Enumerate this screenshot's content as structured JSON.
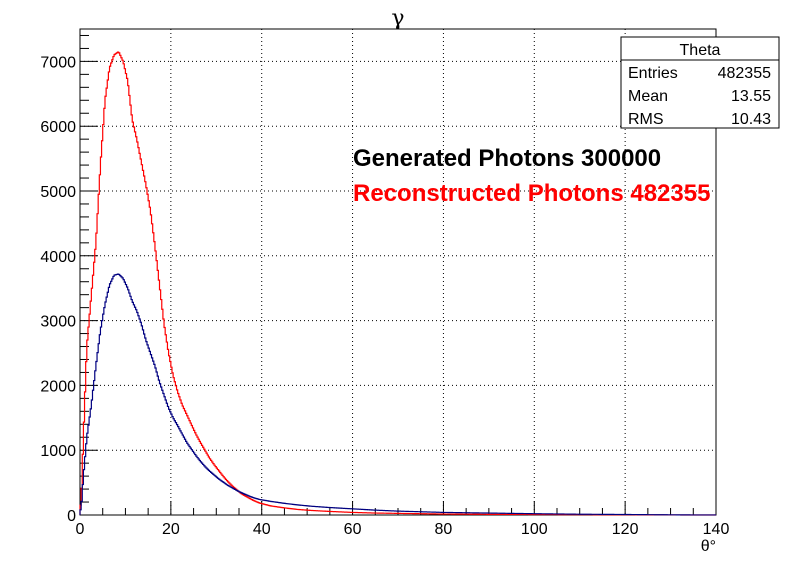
{
  "chart_data": {
    "type": "line",
    "title": "γ",
    "xlabel": "θ°",
    "ylabel": "",
    "xlim": [
      0,
      140
    ],
    "ylim": [
      0,
      7500
    ],
    "xticks": [
      0,
      20,
      40,
      60,
      80,
      100,
      120,
      140
    ],
    "yticks": [
      0,
      1000,
      2000,
      3000,
      4000,
      5000,
      6000,
      7000
    ],
    "grid": true,
    "stats_box": {
      "title": "Theta",
      "rows": [
        {
          "label": "Entries",
          "value": "482355"
        },
        {
          "label": "Mean",
          "value": "13.55"
        },
        {
          "label": "RMS",
          "value": "10.43"
        }
      ]
    },
    "annotations": [
      {
        "text": "Generated Photons 300000",
        "color": "#000000"
      },
      {
        "text": "Reconstructed Photons 482355",
        "color": "#ff0000"
      }
    ],
    "series": [
      {
        "color": "#ff0000",
        "x": [
          0.25,
          0.75,
          1.5,
          2.5,
          3.5,
          4.5,
          5.5,
          6.5,
          7.5,
          8.5,
          9.5,
          10.5,
          11.5,
          12.5,
          13.5,
          14.5,
          15.5,
          16.5,
          17.5,
          18.5,
          19.5,
          20.5,
          21.5,
          22.5,
          23.5,
          24.5,
          25.5,
          26.5,
          27.5,
          28.5,
          29.5,
          30.5,
          31.5,
          32.5,
          33.5,
          34.5,
          35.5,
          36.5,
          37.5,
          38.5,
          39.5,
          42,
          45,
          48,
          51,
          55,
          60,
          65,
          70,
          75,
          80,
          90,
          100,
          110,
          120,
          125,
          130,
          135
        ],
        "y": [
          150,
          1200,
          2600,
          3400,
          4200,
          5400,
          6400,
          6900,
          7100,
          7150,
          7000,
          6700,
          6100,
          5800,
          5450,
          5100,
          4700,
          4150,
          3550,
          2950,
          2500,
          2150,
          1900,
          1700,
          1550,
          1400,
          1250,
          1120,
          1000,
          880,
          780,
          690,
          600,
          520,
          450,
          390,
          330,
          290,
          250,
          215,
          185,
          140,
          110,
          85,
          70,
          55,
          40,
          30,
          25,
          20,
          15,
          10,
          8,
          5,
          3,
          2,
          1,
          0
        ]
      },
      {
        "color": "#000080",
        "x": [
          0.25,
          0.75,
          1.5,
          2.5,
          3.5,
          4.5,
          5.5,
          6.5,
          7.5,
          8.5,
          9.5,
          10.5,
          11.5,
          12.5,
          13.5,
          14.5,
          15.5,
          16.5,
          17.5,
          18.5,
          19.5,
          20.5,
          21.5,
          22.5,
          23.5,
          24.5,
          25.5,
          26.5,
          27.5,
          28.5,
          29.5,
          30.5,
          31.5,
          32.5,
          33.5,
          34.5,
          35.5,
          36.5,
          37.5,
          38.5,
          39.5,
          42,
          45,
          48,
          51,
          55,
          60,
          65,
          70,
          75,
          80,
          90,
          100,
          110,
          120,
          125,
          130,
          135
        ],
        "y": [
          80,
          600,
          1200,
          1700,
          2300,
          2850,
          3250,
          3550,
          3700,
          3720,
          3650,
          3500,
          3300,
          3150,
          2950,
          2700,
          2500,
          2300,
          2050,
          1850,
          1650,
          1500,
          1380,
          1250,
          1120,
          1020,
          920,
          830,
          750,
          680,
          620,
          560,
          510,
          460,
          420,
          380,
          345,
          315,
          285,
          260,
          240,
          210,
          180,
          155,
          135,
          115,
          95,
          75,
          60,
          50,
          40,
          30,
          20,
          12,
          8,
          5,
          3,
          1
        ]
      }
    ]
  }
}
